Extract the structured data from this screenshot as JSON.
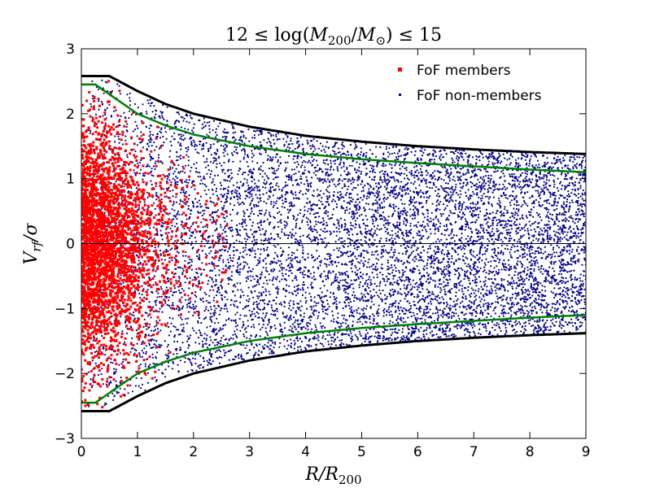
{
  "chart_data": {
    "type": "scatter",
    "title": "12 ≤ log(M200/M⊙) ≤ 15",
    "title_parts": {
      "lhs": "12 ≤ log(",
      "m200_base": "M",
      "m200_sub": "200",
      "slash": "/",
      "msun_base": "M",
      "msun_sub": "⊙",
      "rhs": ") ≤ 15"
    },
    "xlabel": "R/R200",
    "xlabel_parts": {
      "base": "R/R",
      "sub": "200"
    },
    "ylabel": "Vrf/σ",
    "ylabel_parts": {
      "base": "V",
      "sub": "rf",
      "tail": "/σ"
    },
    "xlim": [
      0,
      9
    ],
    "ylim": [
      -3,
      3
    ],
    "xticks": [
      0,
      1,
      2,
      3,
      4,
      5,
      6,
      7,
      8,
      9
    ],
    "yticks": [
      -3,
      -2,
      -1,
      0,
      1,
      2,
      3
    ],
    "ytick_labels": [
      "−3",
      "−2",
      "−1",
      "0",
      "1",
      "2",
      "3"
    ],
    "legend_position": "top-right",
    "legend": [
      {
        "label": "FoF members",
        "color": "#ff0000",
        "marker": "square"
      },
      {
        "label": "FoF non-members",
        "color": "#00008b",
        "marker": "dot"
      }
    ],
    "zero_line": 0,
    "outer_envelope": {
      "color": "#000000",
      "x": [
        0,
        0.5,
        1,
        1.5,
        2,
        3,
        4,
        5,
        6,
        7,
        8,
        9
      ],
      "y": [
        2.58,
        2.58,
        2.35,
        2.15,
        2.0,
        1.8,
        1.66,
        1.57,
        1.5,
        1.45,
        1.41,
        1.38
      ]
    },
    "inner_envelope": {
      "color": "#008000",
      "x": [
        0,
        0.25,
        0.5,
        1,
        1.5,
        2,
        3,
        4,
        5,
        6,
        7,
        8,
        9
      ],
      "y": [
        2.45,
        2.45,
        2.3,
        2.0,
        1.82,
        1.68,
        1.5,
        1.38,
        1.3,
        1.24,
        1.19,
        1.14,
        1.1
      ]
    },
    "series": [
      {
        "name": "FoF members",
        "color": "#ff0000",
        "approx_count": 3000,
        "points_sample": [
          {
            "x": 0.05,
            "y": 0.2
          },
          {
            "x": 0.1,
            "y": -0.8
          },
          {
            "x": 0.2,
            "y": 1.3
          },
          {
            "x": 0.3,
            "y": -1.7
          },
          {
            "x": 0.4,
            "y": 0.6
          },
          {
            "x": 0.6,
            "y": -0.3
          },
          {
            "x": 0.8,
            "y": 1.0
          },
          {
            "x": 1.0,
            "y": -1.2
          },
          {
            "x": 1.3,
            "y": 0.4
          },
          {
            "x": 1.6,
            "y": -0.6
          },
          {
            "x": 2.0,
            "y": 0.9
          },
          {
            "x": 2.4,
            "y": -0.2
          }
        ]
      },
      {
        "name": "FoF non-members",
        "color": "#00008b",
        "approx_count": 9000,
        "points_sample": [
          {
            "x": 0.5,
            "y": 1.5
          },
          {
            "x": 1.2,
            "y": -1.9
          },
          {
            "x": 2.5,
            "y": 1.2
          },
          {
            "x": 3.5,
            "y": -0.7
          },
          {
            "x": 4.5,
            "y": 0.3
          },
          {
            "x": 5.5,
            "y": -1.1
          },
          {
            "x": 6.5,
            "y": 0.8
          },
          {
            "x": 7.5,
            "y": -0.4
          },
          {
            "x": 8.5,
            "y": 1.0
          }
        ]
      }
    ]
  }
}
